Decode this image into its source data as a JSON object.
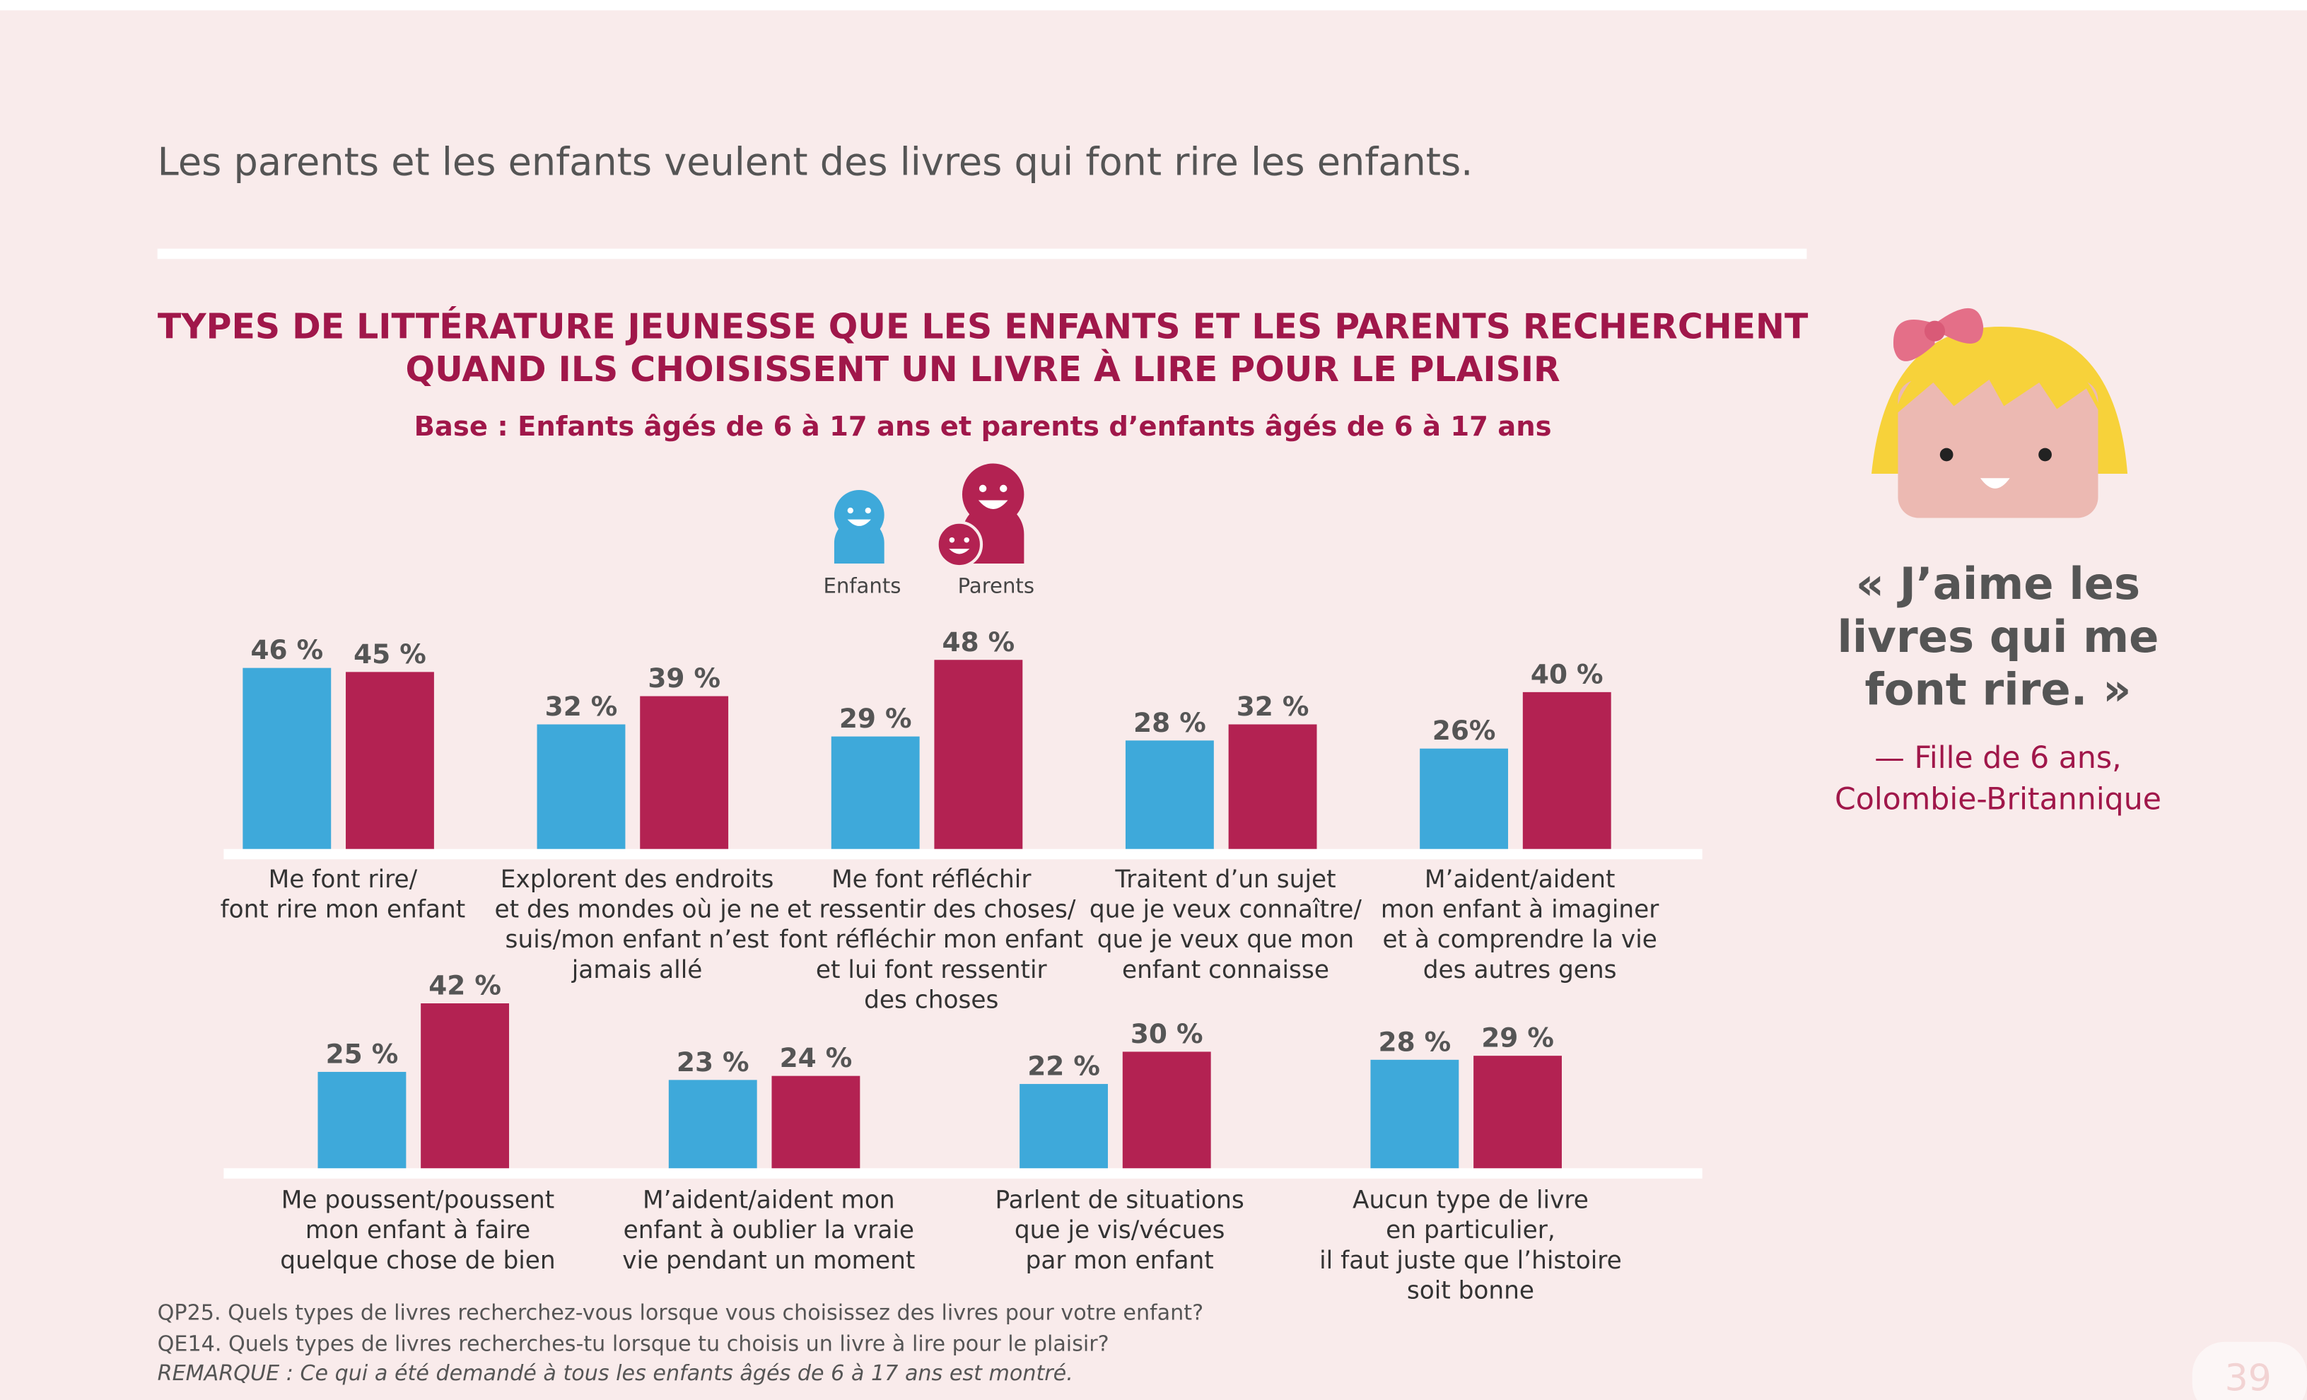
{
  "page": {
    "heading": "Les parents et les enfants veulent des livres qui font rire les enfants.",
    "quote": [
      "« J’aime les",
      "livres qui me",
      "font rire. »"
    ],
    "attribution": [
      "— Fille de 6 ans,",
      "Colombie-Britannique"
    ],
    "notes": [
      "QP25. Quels types de livres recherchez-vous lorsque vous choisissez des livres pour votre enfant?",
      "QE14. Quels types de livres recherches-tu lorsque tu choisis un livre à lire pour le plaisir?",
      "REMARQUE : Ce qui a été demandé à tous les enfants âgés de 6 à 17 ans est montré."
    ],
    "page_number": "39"
  },
  "chart_data": [
    {
      "type": "bar",
      "title": [
        "TYPES DE LITTÉRATURE JEUNESSE QUE LES ENFANTS ET LES PARENTS RECHERCHENT",
        "QUAND ILS CHOISISSENT UN LIVRE À LIRE POUR LE PLAISIR"
      ],
      "subtitle": "Base : Enfants âgés de 6 à 17 ans et parents d’enfants âgés de 6 à 17 ans",
      "categories": [
        [
          "Me font rire/",
          "font rire mon enfant"
        ],
        [
          "Explorent des endroits",
          "et des mondes où je ne",
          "suis/mon enfant n’est",
          "jamais allé"
        ],
        [
          "Me font réfléchir",
          "et ressentir des choses/",
          "font réfléchir mon enfant",
          "et lui font ressentir",
          "des choses"
        ],
        [
          "Traitent d’un sujet",
          "que je veux connaître/",
          "que je veux que mon",
          "enfant connaisse"
        ],
        [
          "M’aident/aident",
          "mon enfant à imaginer",
          "et à comprendre la vie",
          "des autres gens"
        ]
      ],
      "series": [
        {
          "name": "Enfants",
          "color": "#3ea9da",
          "values": [
            46,
            32,
            29,
            28,
            26
          ],
          "value_labels": [
            "46 %",
            "32 %",
            "29 %",
            "28 %",
            "26%"
          ]
        },
        {
          "name": "Parents",
          "color": "#b32252",
          "values": [
            45,
            39,
            48,
            32,
            40
          ],
          "value_labels": [
            "45 %",
            "39 %",
            "48 %",
            "32 %",
            "40 %"
          ]
        }
      ]
    },
    {
      "type": "bar",
      "categories": [
        [
          "Me poussent/poussent",
          "mon enfant à faire",
          "quelque chose de bien"
        ],
        [
          "M’aident/aident mon",
          "enfant à oublier la vraie",
          "vie pendant un moment"
        ],
        [
          "Parlent de situations",
          "que je vis/vécues",
          "par mon enfant"
        ],
        [
          "Aucun type de livre",
          "en particulier,",
          "il faut juste que l’histoire",
          "soit bonne"
        ]
      ],
      "series": [
        {
          "color": "#3ea9da",
          "values": [
            25,
            23,
            22,
            28
          ],
          "value_labels": [
            "25 %",
            "23 %",
            "22 %",
            "28 %"
          ]
        },
        {
          "color": "#b32252",
          "values": [
            42,
            24,
            30,
            29
          ],
          "value_labels": [
            "42 %",
            "24 %",
            "30 %",
            "29 %"
          ]
        }
      ]
    }
  ]
}
